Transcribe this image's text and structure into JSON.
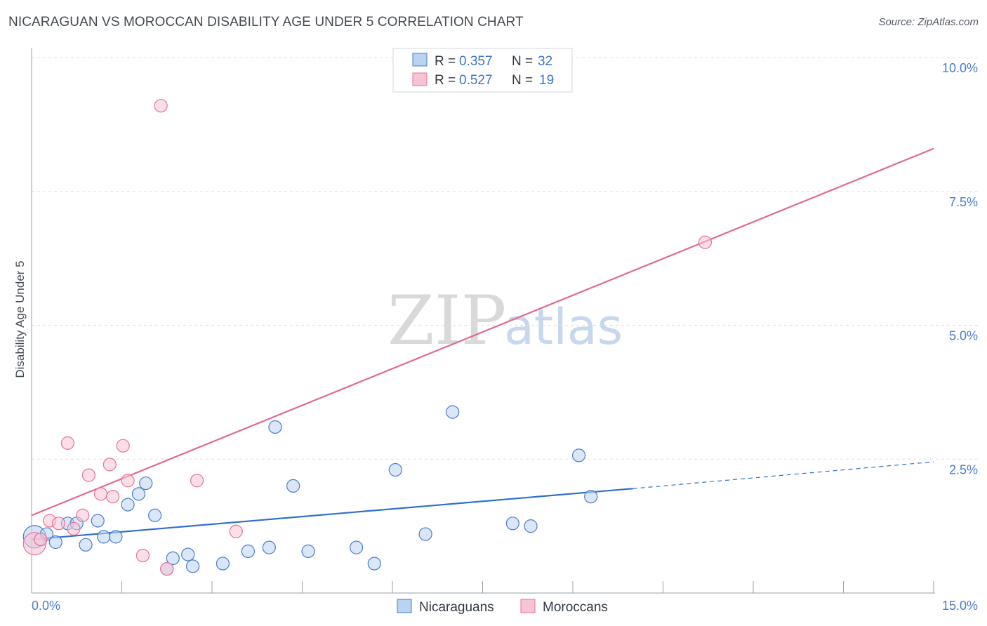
{
  "header": {
    "title": "NICARAGUAN VS MOROCCAN DISABILITY AGE UNDER 5 CORRELATION CHART",
    "source": "Source: ZipAtlas.com"
  },
  "watermark": {
    "zip": "ZIP",
    "atlas": "atlas"
  },
  "colors": {
    "blue": "#4a7cc9",
    "blue_fill": "#b9d3f3",
    "blue_line": "#2f6fce",
    "pink": "#e8709a",
    "pink_fill": "#f7c4d3",
    "pink_line": "#e06a93",
    "grid": "#dde0e5"
  },
  "legend": {
    "rows": [
      {
        "r_label": "R =",
        "r_value": "0.357",
        "n_label": "N =",
        "n_value": "32",
        "series": "Nicaraguans"
      },
      {
        "r_label": "R =",
        "r_value": "0.527",
        "n_label": "N =",
        "n_value": "19",
        "series": "Moroccans"
      }
    ]
  },
  "bottom_legend": {
    "items": [
      "Nicaraguans",
      "Moroccans"
    ]
  },
  "chart_data": {
    "type": "scatter",
    "title": "NICARAGUAN VS MOROCCAN DISABILITY AGE UNDER 5 CORRELATION CHART",
    "xlabel": "",
    "ylabel": "Disability Age Under 5",
    "xlim": [
      0,
      15
    ],
    "ylim": [
      0,
      10
    ],
    "x_ticks": [
      "0.0%",
      "15.0%"
    ],
    "y_ticks": [
      {
        "value": 2.5,
        "label": "2.5%"
      },
      {
        "value": 5.0,
        "label": "5.0%"
      },
      {
        "value": 7.5,
        "label": "7.5%"
      },
      {
        "value": 10.0,
        "label": "10.0%"
      }
    ],
    "series": [
      {
        "name": "Nicaraguans",
        "color": "#4a7cc9",
        "points": [
          [
            0.05,
            1.05
          ],
          [
            0.25,
            1.1
          ],
          [
            0.4,
            0.95
          ],
          [
            0.6,
            1.3
          ],
          [
            0.75,
            1.3
          ],
          [
            0.9,
            0.9
          ],
          [
            1.1,
            1.35
          ],
          [
            1.2,
            1.05
          ],
          [
            1.4,
            1.05
          ],
          [
            1.6,
            1.65
          ],
          [
            1.78,
            1.85
          ],
          [
            1.9,
            2.05
          ],
          [
            2.05,
            1.45
          ],
          [
            2.25,
            0.45
          ],
          [
            2.35,
            0.65
          ],
          [
            2.6,
            0.72
          ],
          [
            2.68,
            0.5
          ],
          [
            3.18,
            0.55
          ],
          [
            3.6,
            0.78
          ],
          [
            3.95,
            0.85
          ],
          [
            4.05,
            3.1
          ],
          [
            4.35,
            2.0
          ],
          [
            4.6,
            0.78
          ],
          [
            5.4,
            0.85
          ],
          [
            5.7,
            0.55
          ],
          [
            6.05,
            2.3
          ],
          [
            6.55,
            1.1
          ],
          [
            7.0,
            3.38
          ],
          [
            8.0,
            1.3
          ],
          [
            8.3,
            1.25
          ],
          [
            9.1,
            2.57
          ],
          [
            9.3,
            1.8
          ]
        ],
        "trend": {
          "x": [
            0,
            10.0
          ],
          "y": [
            1.0,
            1.95
          ],
          "dashed_to": [
            15.0,
            2.45
          ]
        }
      },
      {
        "name": "Moroccans",
        "color": "#e8709a",
        "points": [
          [
            0.05,
            0.92
          ],
          [
            0.15,
            1.0
          ],
          [
            0.3,
            1.35
          ],
          [
            0.45,
            1.3
          ],
          [
            0.6,
            2.8
          ],
          [
            0.7,
            1.2
          ],
          [
            0.85,
            1.45
          ],
          [
            0.95,
            2.2
          ],
          [
            1.15,
            1.85
          ],
          [
            1.3,
            2.4
          ],
          [
            1.35,
            1.8
          ],
          [
            1.52,
            2.75
          ],
          [
            1.6,
            2.1
          ],
          [
            1.85,
            0.7
          ],
          [
            2.15,
            9.1
          ],
          [
            2.25,
            0.45
          ],
          [
            2.75,
            2.1
          ],
          [
            3.4,
            1.15
          ],
          [
            11.2,
            6.55
          ]
        ],
        "trend": {
          "x": [
            0,
            15.0
          ],
          "y": [
            1.45,
            8.3
          ]
        }
      }
    ]
  }
}
